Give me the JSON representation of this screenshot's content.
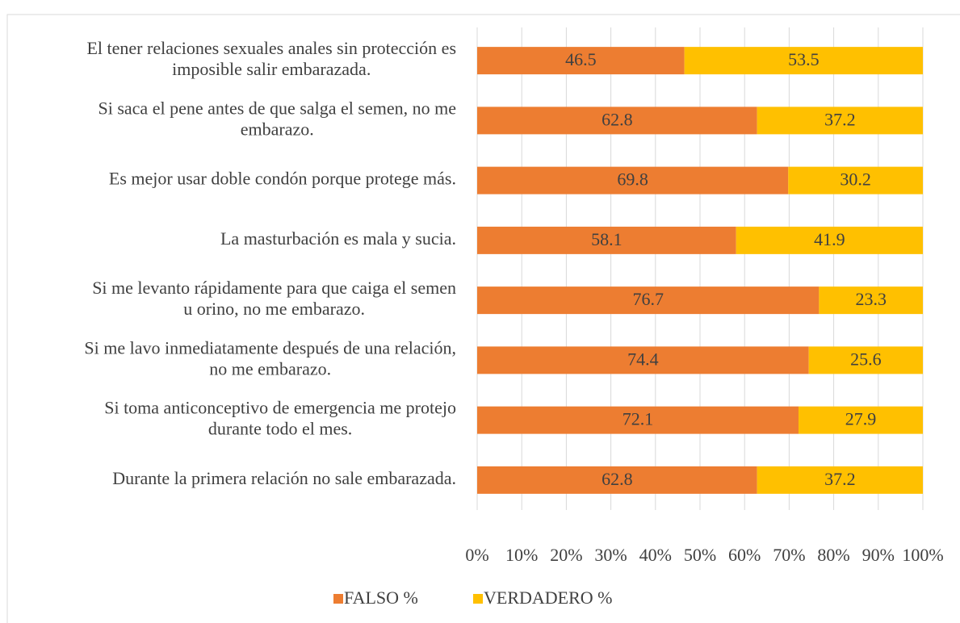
{
  "chart_data": {
    "type": "stacked-bar-horizontal",
    "categories": [
      "El tener relaciones sexuales anales sin protección es imposible salir embarazada.",
      "Si saca el pene antes de que salga el semen, no me embarazo.",
      "Es mejor usar doble condón porque protege más.",
      "La masturbación es mala y  sucia.",
      "Si me levanto rápidamente para que caiga el semen u orino, no me embarazo.",
      "Si me lavo inmediatamente después de una relación, no me embarazo.",
      "Si toma anticonceptivo de emergencia me protejo durante todo el mes.",
      "Durante la primera relación no sale embarazada."
    ],
    "series": [
      {
        "name": "FALSO %",
        "color": "#ed7d31",
        "values": [
          46.5,
          62.8,
          69.8,
          58.1,
          76.7,
          74.4,
          72.1,
          62.8
        ]
      },
      {
        "name": "VERDADERO %",
        "color": "#ffc000",
        "values": [
          53.5,
          37.2,
          30.2,
          41.9,
          23.3,
          25.6,
          27.9,
          37.2
        ]
      }
    ],
    "xlim": [
      0,
      100
    ],
    "xticks": [
      {
        "value": 0,
        "label": "0%"
      },
      {
        "value": 10,
        "label": "10%"
      },
      {
        "value": 20,
        "label": "20%"
      },
      {
        "value": 30,
        "label": "30%"
      },
      {
        "value": 40,
        "label": "40%"
      },
      {
        "value": 50,
        "label": "50%"
      },
      {
        "value": 60,
        "label": "60%"
      },
      {
        "value": 70,
        "label": "70%"
      },
      {
        "value": 80,
        "label": "80%"
      },
      {
        "value": 90,
        "label": "90%"
      },
      {
        "value": 100,
        "label": "100%"
      }
    ],
    "grid": true,
    "legend": "bottom"
  }
}
